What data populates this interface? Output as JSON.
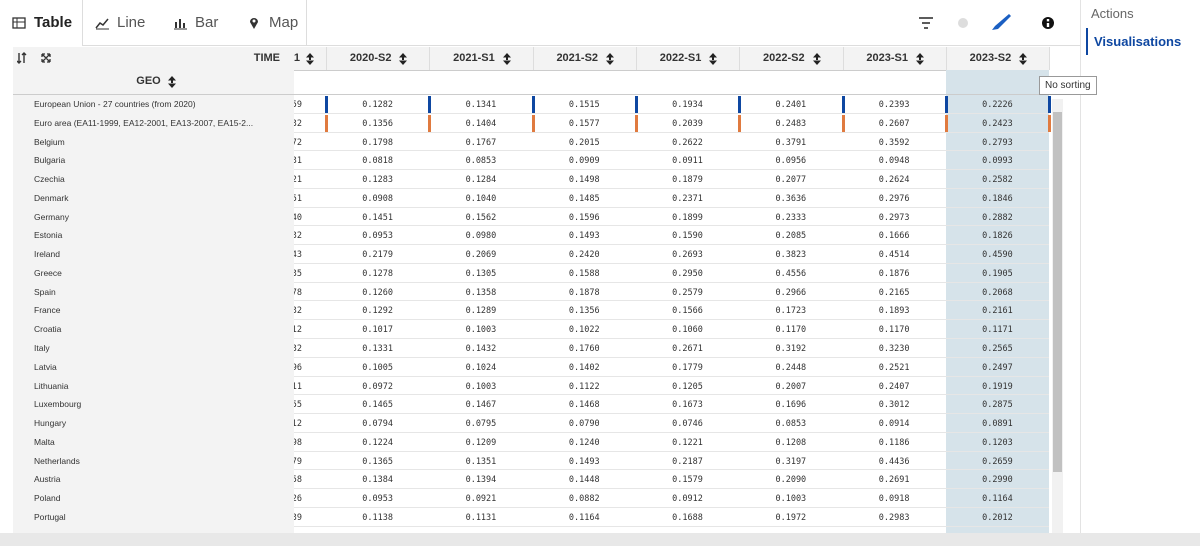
{
  "tabs": [
    "Table",
    "Line",
    "Bar",
    "Map"
  ],
  "sidebar": {
    "actions": "Actions",
    "visualisations": "Visualisations"
  },
  "tooltip": "No sorting",
  "table": {
    "time_label": "TIME",
    "geo_label": "GEO",
    "columns": [
      "1",
      "2020-S2",
      "2021-S1",
      "2021-S2",
      "2022-S1",
      "2022-S2",
      "2023-S1",
      "2023-S2"
    ],
    "rows": [
      {
        "geo": "European Union - 27 countries (from 2020)",
        "values": [
          "59",
          "0.1282",
          "0.1341",
          "0.1515",
          "0.1934",
          "0.2401",
          "0.2393",
          "0.2226"
        ]
      },
      {
        "geo": "Euro area (EA11-1999, EA12-2001, EA13-2007, EA15-2...",
        "values": [
          "32",
          "0.1356",
          "0.1404",
          "0.1577",
          "0.2039",
          "0.2483",
          "0.2607",
          "0.2423"
        ]
      },
      {
        "geo": "Belgium",
        "values": [
          "72",
          "0.1798",
          "0.1767",
          "0.2015",
          "0.2622",
          "0.3791",
          "0.3592",
          "0.2793"
        ]
      },
      {
        "geo": "Bulgaria",
        "values": [
          "31",
          "0.0818",
          "0.0853",
          "0.0909",
          "0.0911",
          "0.0956",
          "0.0948",
          "0.0993"
        ]
      },
      {
        "geo": "Czechia",
        "values": [
          "21",
          "0.1283",
          "0.1284",
          "0.1498",
          "0.1879",
          "0.2077",
          "0.2624",
          "0.2582"
        ]
      },
      {
        "geo": "Denmark",
        "values": [
          "51",
          "0.0908",
          "0.1040",
          "0.1485",
          "0.2371",
          "0.3636",
          "0.2976",
          "0.1846"
        ]
      },
      {
        "geo": "Germany",
        "values": [
          "40",
          "0.1451",
          "0.1562",
          "0.1596",
          "0.1899",
          "0.2333",
          "0.2973",
          "0.2882"
        ]
      },
      {
        "geo": "Estonia",
        "values": [
          "32",
          "0.0953",
          "0.0980",
          "0.1493",
          "0.1590",
          "0.2085",
          "0.1666",
          "0.1826"
        ]
      },
      {
        "geo": "Ireland",
        "values": [
          "43",
          "0.2179",
          "0.2069",
          "0.2420",
          "0.2693",
          "0.3823",
          "0.4514",
          "0.4590"
        ]
      },
      {
        "geo": "Greece",
        "values": [
          "35",
          "0.1278",
          "0.1305",
          "0.1588",
          "0.2950",
          "0.4556",
          "0.1876",
          "0.1905"
        ]
      },
      {
        "geo": "Spain",
        "values": [
          "78",
          "0.1260",
          "0.1358",
          "0.1878",
          "0.2579",
          "0.2966",
          "0.2165",
          "0.2068"
        ]
      },
      {
        "geo": "France",
        "values": [
          "32",
          "0.1292",
          "0.1289",
          "0.1356",
          "0.1566",
          "0.1723",
          "0.1893",
          "0.2161"
        ]
      },
      {
        "geo": "Croatia",
        "values": [
          "12",
          "0.1017",
          "0.1003",
          "0.1022",
          "0.1060",
          "0.1170",
          "0.1170",
          "0.1171"
        ]
      },
      {
        "geo": "Italy",
        "values": [
          "32",
          "0.1331",
          "0.1432",
          "0.1760",
          "0.2671",
          "0.3192",
          "0.3230",
          "0.2565"
        ]
      },
      {
        "geo": "Latvia",
        "values": [
          "96",
          "0.1005",
          "0.1024",
          "0.1402",
          "0.1779",
          "0.2448",
          "0.2521",
          "0.2497"
        ]
      },
      {
        "geo": "Lithuania",
        "values": [
          "11",
          "0.0972",
          "0.1003",
          "0.1122",
          "0.1205",
          "0.2007",
          "0.2407",
          "0.1919"
        ]
      },
      {
        "geo": "Luxembourg",
        "values": [
          "55",
          "0.1465",
          "0.1467",
          "0.1468",
          "0.1673",
          "0.1696",
          "0.3012",
          "0.2875"
        ]
      },
      {
        "geo": "Hungary",
        "values": [
          "12",
          "0.0794",
          "0.0795",
          "0.0790",
          "0.0746",
          "0.0853",
          "0.0914",
          "0.0891"
        ]
      },
      {
        "geo": "Malta",
        "values": [
          "98",
          "0.1224",
          "0.1209",
          "0.1240",
          "0.1221",
          "0.1208",
          "0.1186",
          "0.1203"
        ]
      },
      {
        "geo": "Netherlands",
        "values": [
          "79",
          "0.1365",
          "0.1351",
          "0.1493",
          "0.2187",
          "0.3197",
          "0.4436",
          "0.2659"
        ]
      },
      {
        "geo": "Austria",
        "values": [
          "58",
          "0.1384",
          "0.1394",
          "0.1448",
          "0.1579",
          "0.2090",
          "0.2691",
          "0.2990"
        ]
      },
      {
        "geo": "Poland",
        "values": [
          "26",
          "0.0953",
          "0.0921",
          "0.0882",
          "0.0912",
          "0.1003",
          "0.0918",
          "0.1164"
        ]
      },
      {
        "geo": "Portugal",
        "values": [
          "39",
          "0.1138",
          "0.1131",
          "0.1164",
          "0.1688",
          "0.1972",
          "0.2983",
          "0.2012"
        ]
      }
    ]
  }
}
